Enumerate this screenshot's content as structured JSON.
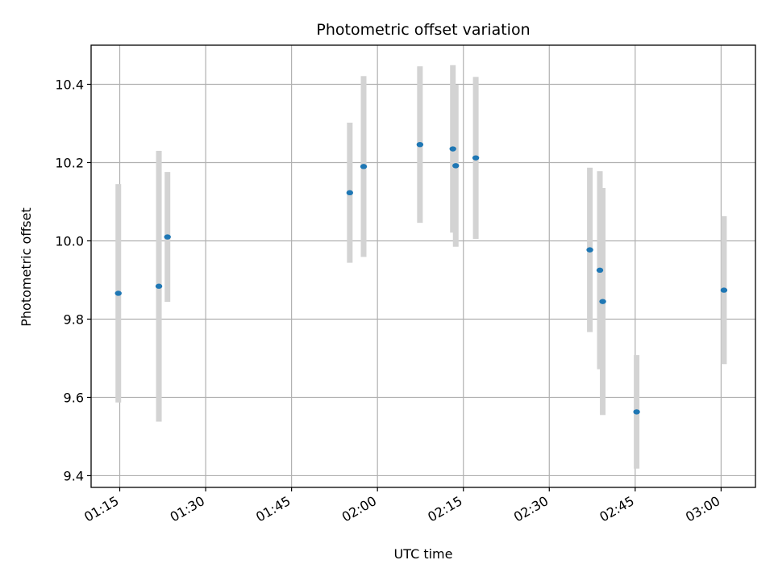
{
  "chart_data": {
    "type": "scatter",
    "title": "Photometric offset variation",
    "xlabel": "UTC time",
    "ylabel": "Photometric offset",
    "x_tick_labels": [
      "01:15",
      "01:30",
      "01:45",
      "02:00",
      "02:15",
      "02:30",
      "02:45",
      "03:00"
    ],
    "x_ticks": [
      "01:15",
      "01:30",
      "01:45",
      "02:00",
      "02:15",
      "02:30",
      "02:45",
      "03:00"
    ],
    "y_ticks": [
      9.4,
      9.6,
      9.8,
      10.0,
      10.2,
      10.4
    ],
    "y_tick_labels": [
      "9.4",
      "9.6",
      "9.8",
      "10.0",
      "10.2",
      "10.4"
    ],
    "xlim": [
      "01:10",
      "03:06"
    ],
    "ylim": [
      9.37,
      10.5
    ],
    "grid": true,
    "colors": {
      "point": "#1f77b4",
      "errorbar": "#d3d3d3",
      "grid": "#b0b0b0"
    },
    "points": [
      {
        "x": "01:14:45",
        "y": 9.866,
        "err": 0.279
      },
      {
        "x": "01:21:50",
        "y": 9.884,
        "err": 0.346
      },
      {
        "x": "01:23:20",
        "y": 10.01,
        "err": 0.166
      },
      {
        "x": "01:55:10",
        "y": 10.123,
        "err": 0.179
      },
      {
        "x": "01:57:35",
        "y": 10.19,
        "err": 0.231
      },
      {
        "x": "02:07:25",
        "y": 10.246,
        "err": 0.2
      },
      {
        "x": "02:13:10",
        "y": 10.235,
        "err": 0.214
      },
      {
        "x": "02:13:40",
        "y": 10.192,
        "err": 0.207
      },
      {
        "x": "02:17:10",
        "y": 10.212,
        "err": 0.207
      },
      {
        "x": "02:37:05",
        "y": 9.977,
        "err": 0.21
      },
      {
        "x": "02:38:50",
        "y": 9.925,
        "err": 0.253
      },
      {
        "x": "02:39:20",
        "y": 9.845,
        "err": 0.29
      },
      {
        "x": "02:45:15",
        "y": 9.563,
        "err": 0.145
      },
      {
        "x": "03:00:30",
        "y": 9.874,
        "err": 0.189
      }
    ]
  }
}
